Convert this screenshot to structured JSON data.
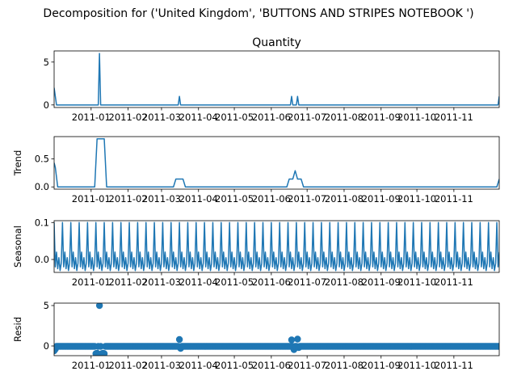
{
  "figure": {
    "suptitle": "Decomposition for ('United Kingdom', 'BUTTONS AND STRIPES NOTEBOOK ')"
  },
  "colors": {
    "series": "#1f77b4",
    "axes": "#000000",
    "background": "#ffffff"
  },
  "chart_data": [
    {
      "type": "line",
      "title": "Quantity",
      "ylabel": "",
      "ylim": [
        -0.3,
        6.3
      ],
      "yticks": [
        0,
        5
      ],
      "xlim": [
        "2010-12-01",
        "2011-12-09"
      ],
      "xtick_labels": [
        "2011-01",
        "2011-02",
        "2011-03",
        "2011-04",
        "2011-05",
        "2011-06",
        "2011-07",
        "2011-08",
        "2011-09",
        "2011-10",
        "2011-11"
      ],
      "grid": false,
      "points": [
        [
          "2010-12-01",
          2
        ],
        [
          "2010-12-03",
          0
        ],
        [
          "2011-01-07",
          0
        ],
        [
          "2011-01-08",
          6
        ],
        [
          "2011-01-09",
          0
        ],
        [
          "2011-03-15",
          0
        ],
        [
          "2011-03-16",
          1
        ],
        [
          "2011-03-17",
          0
        ],
        [
          "2011-06-17",
          0
        ],
        [
          "2011-06-18",
          1
        ],
        [
          "2011-06-19",
          0
        ],
        [
          "2011-06-22",
          0
        ],
        [
          "2011-06-23",
          1
        ],
        [
          "2011-06-24",
          0
        ],
        [
          "2011-12-08",
          0
        ],
        [
          "2011-12-09",
          1
        ]
      ]
    },
    {
      "type": "line",
      "title": "",
      "ylabel": "Trend",
      "ylim": [
        -0.04,
        0.9
      ],
      "yticks": [
        0.0,
        0.5
      ],
      "xlim": [
        "2010-12-01",
        "2011-12-09"
      ],
      "xtick_labels": [
        "2011-01",
        "2011-02",
        "2011-03",
        "2011-04",
        "2011-05",
        "2011-06",
        "2011-07",
        "2011-08",
        "2011-09",
        "2011-10",
        "2011-11"
      ],
      "grid": false,
      "points": [
        [
          "2010-12-01",
          0.43
        ],
        [
          "2010-12-02",
          0.35
        ],
        [
          "2010-12-04",
          0
        ],
        [
          "2011-01-04",
          0
        ],
        [
          "2011-01-06",
          0.86
        ],
        [
          "2011-01-12",
          0.86
        ],
        [
          "2011-01-14",
          0
        ],
        [
          "2011-03-11",
          0
        ],
        [
          "2011-03-13",
          0.14
        ],
        [
          "2011-03-19",
          0.14
        ],
        [
          "2011-03-21",
          0
        ],
        [
          "2011-06-14",
          0
        ],
        [
          "2011-06-16",
          0.14
        ],
        [
          "2011-06-19",
          0.14
        ],
        [
          "2011-06-21",
          0.29
        ],
        [
          "2011-06-23",
          0.14
        ],
        [
          "2011-06-26",
          0.14
        ],
        [
          "2011-06-28",
          0
        ],
        [
          "2011-12-07",
          0
        ],
        [
          "2011-12-09",
          0.14
        ]
      ]
    },
    {
      "type": "line",
      "title": "",
      "ylabel": "Seasonal",
      "ylim": [
        -0.035,
        0.105
      ],
      "yticks": [
        0.0,
        0.1
      ],
      "xlim": [
        "2010-12-01",
        "2011-12-09"
      ],
      "xtick_labels": [
        "2011-01",
        "2011-02",
        "2011-03",
        "2011-04",
        "2011-05",
        "2011-06",
        "2011-07",
        "2011-08",
        "2011-09",
        "2011-10",
        "2011-11"
      ],
      "grid": false,
      "period_days": 7,
      "weekly_pattern": [
        0.1,
        -0.02,
        0.02,
        -0.025,
        0.005,
        -0.03,
        -0.01
      ]
    },
    {
      "type": "scatter",
      "title": "",
      "ylabel": "Resid",
      "ylim": [
        -1.2,
        5.3
      ],
      "yticks": [
        0,
        5
      ],
      "xlim": [
        "2010-12-01",
        "2011-12-09"
      ],
      "xtick_labels": [
        "2011-01",
        "2011-02",
        "2011-03",
        "2011-04",
        "2011-05",
        "2011-06",
        "2011-07",
        "2011-08",
        "2011-09",
        "2011-10",
        "2011-11"
      ],
      "grid": false,
      "baseline_value": -0.05,
      "outliers": [
        [
          "2010-12-01",
          -0.6
        ],
        [
          "2010-12-02",
          -0.4
        ],
        [
          "2011-01-05",
          -0.95
        ],
        [
          "2011-01-06",
          -0.9
        ],
        [
          "2011-01-08",
          5.0
        ],
        [
          "2011-01-10",
          -0.95
        ],
        [
          "2011-01-11",
          -0.9
        ],
        [
          "2011-01-12",
          -0.95
        ],
        [
          "2011-03-16",
          0.8
        ],
        [
          "2011-03-17",
          -0.3
        ],
        [
          "2011-06-18",
          0.75
        ],
        [
          "2011-06-20",
          -0.45
        ],
        [
          "2011-06-23",
          0.85
        ],
        [
          "2011-06-24",
          -0.2
        ]
      ]
    }
  ]
}
